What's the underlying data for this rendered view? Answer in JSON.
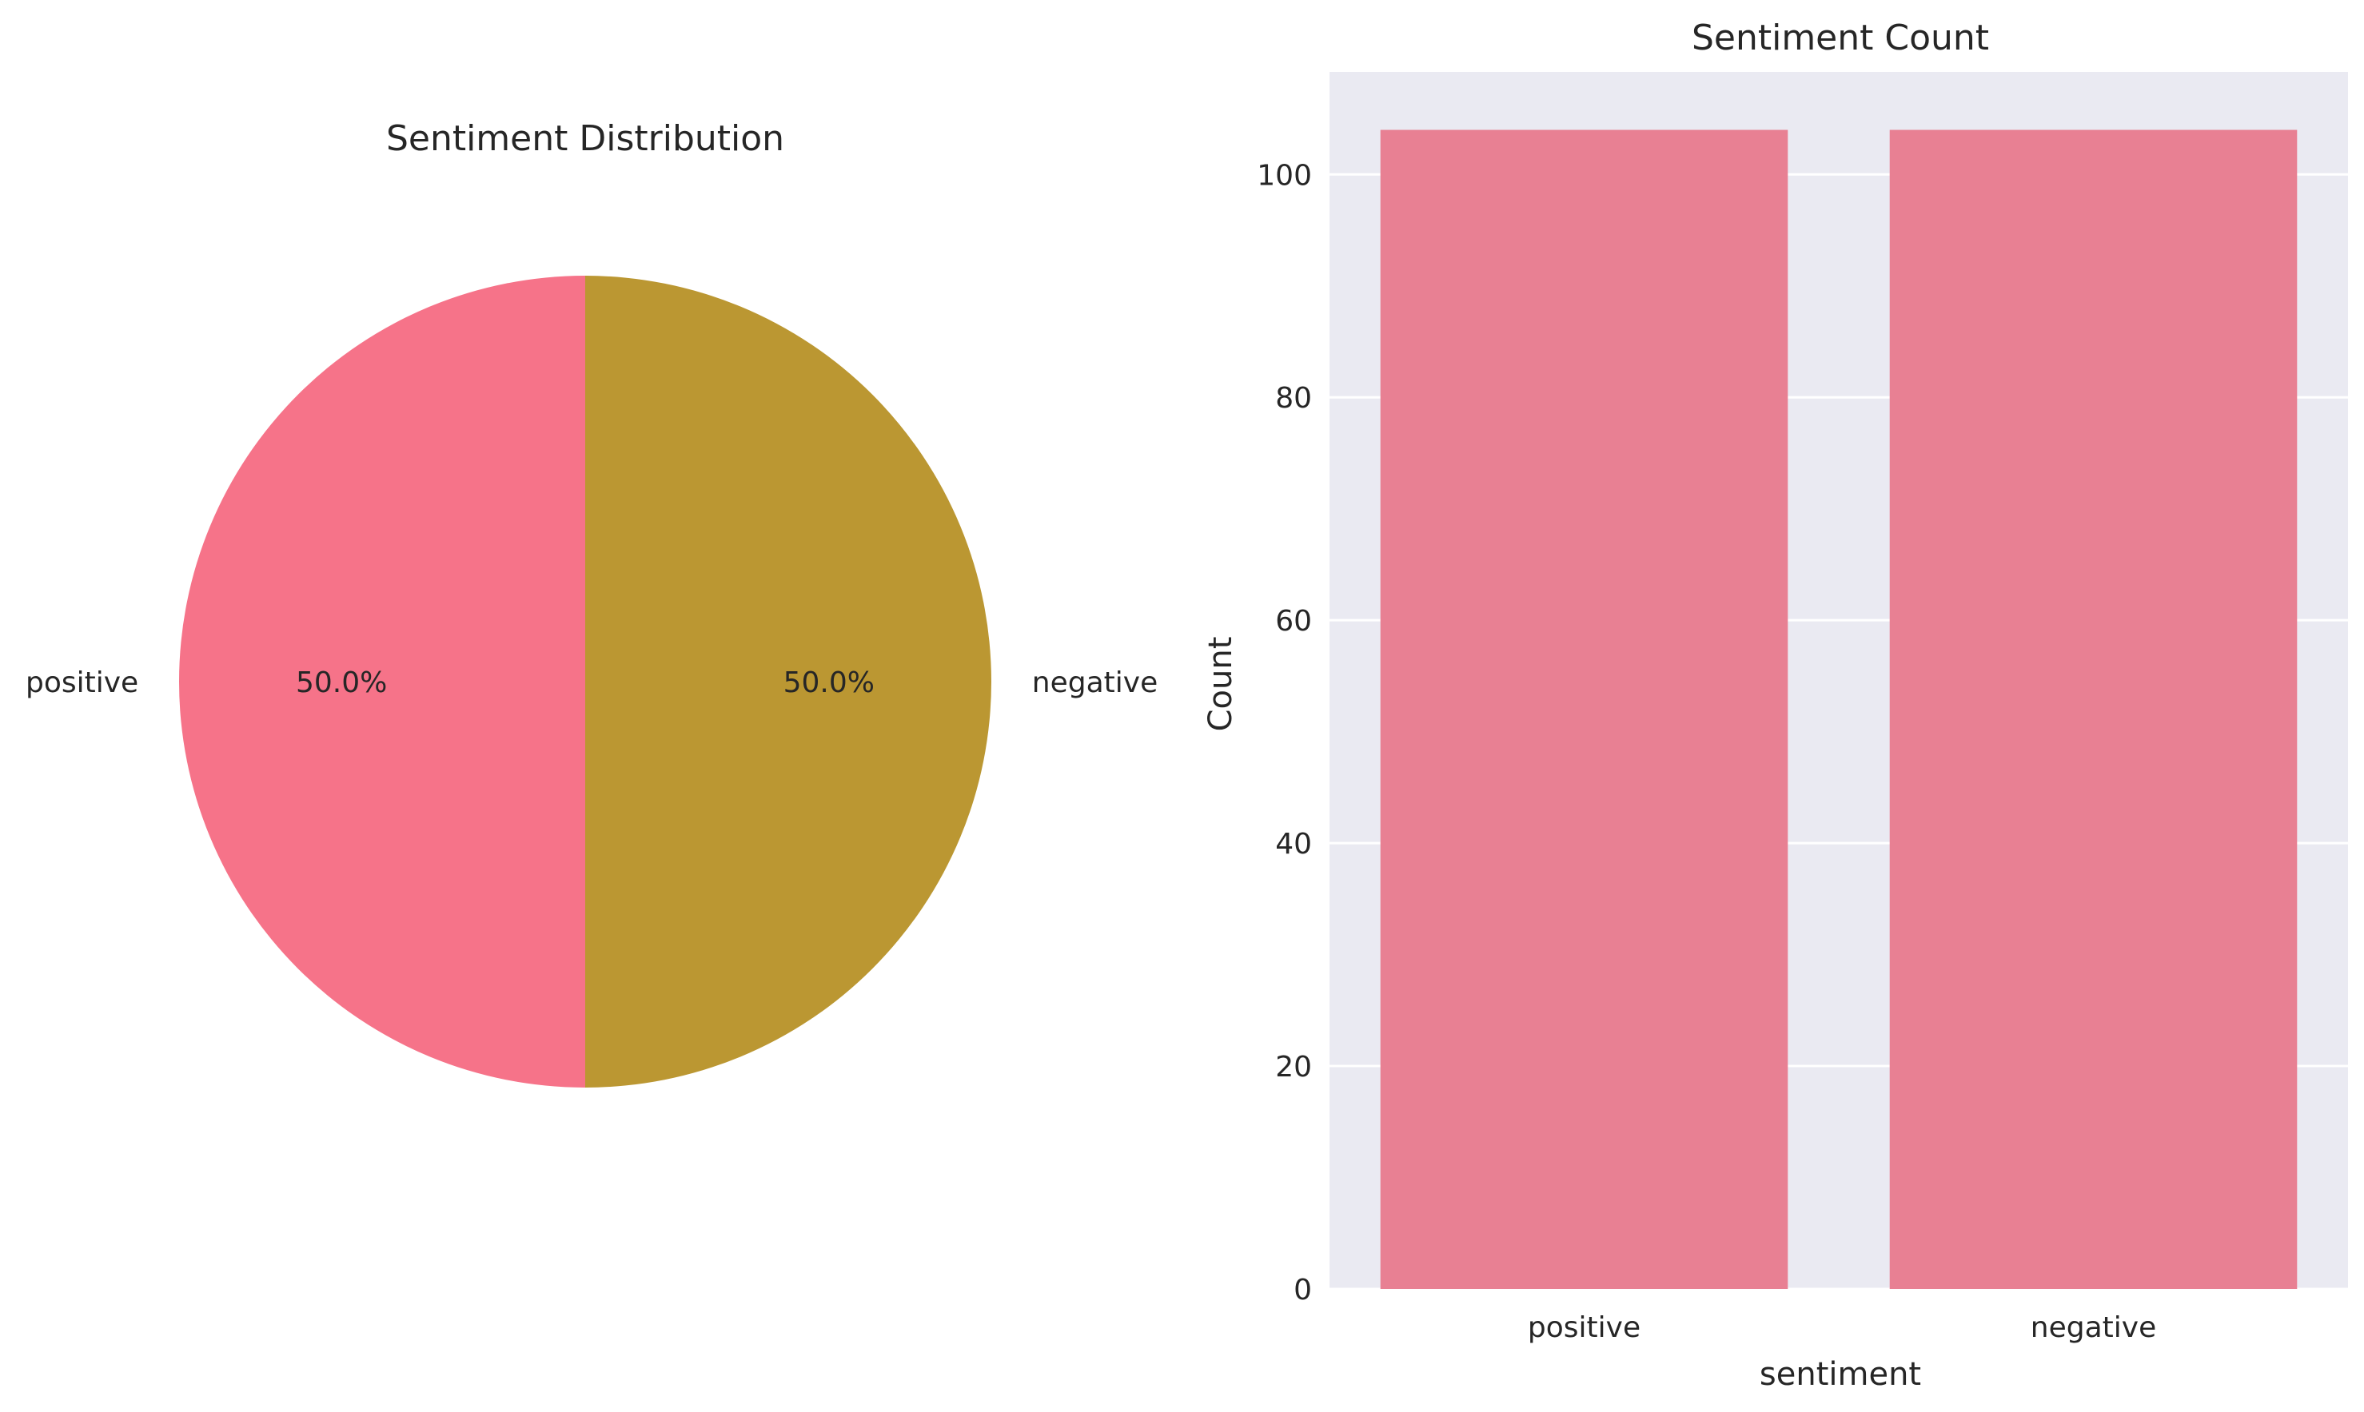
{
  "chart_data": [
    {
      "type": "pie",
      "title": "Sentiment Distribution",
      "labels": [
        "positive",
        "negative"
      ],
      "values": [
        50.0,
        50.0
      ],
      "percent_labels": [
        "50.0%",
        "50.0%"
      ],
      "colors": [
        "#f67389",
        "#bb9732"
      ],
      "start_angle_deg": 90
    },
    {
      "type": "bar",
      "title": "Sentiment Count",
      "categories": [
        "positive",
        "negative"
      ],
      "values": [
        104,
        104
      ],
      "xlabel": "sentiment",
      "ylabel": "Count",
      "ylim": [
        0,
        109.2
      ],
      "yticks": [
        0,
        20,
        40,
        60,
        80,
        100
      ],
      "grid": true,
      "bar_color": "#e88093",
      "background_color": "#eaeaf2",
      "grid_color": "#ffffff"
    }
  ]
}
